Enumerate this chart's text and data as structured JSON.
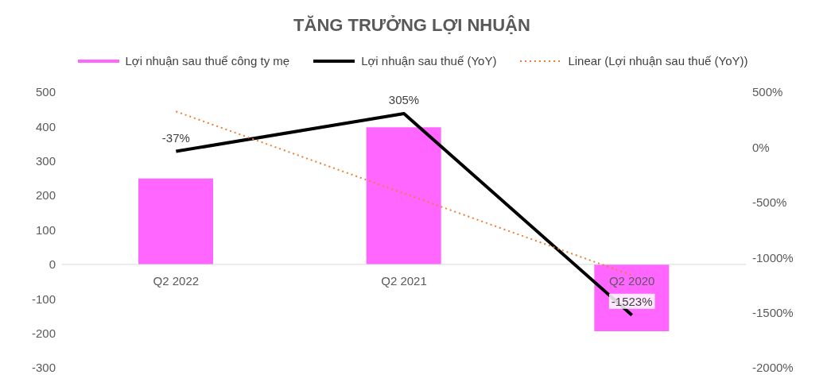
{
  "chart_data": {
    "type": "bar",
    "title": "TĂNG TRƯỞNG LỢI NHUẬN",
    "categories": [
      "Q2 2022",
      "Q2 2021",
      "Q2 2020"
    ],
    "series": [
      {
        "name": "Lợi nhuận sau thuế công ty mẹ",
        "color": "#ff66ff",
        "values": [
          249,
          398,
          -194
        ]
      },
      {
        "name": "Lợi nhuận sau thuế (YoY)",
        "type": "line",
        "axis": "y2",
        "color": "#000000",
        "values": [
          -37,
          305,
          -1523
        ],
        "value_labels": [
          "-37%",
          "305%",
          "-1523%"
        ]
      },
      {
        "name": "Linear (Lợi nhuận sau thuế (YoY))",
        "type": "line",
        "axis": "y2",
        "color": "#ed7d31",
        "line_style": "dotted",
        "values": [
          325,
          -418,
          -1161
        ]
      }
    ],
    "ylim": [
      -300,
      500
    ],
    "yticks": [
      -300,
      -200,
      -100,
      0,
      100,
      200,
      300,
      400,
      500
    ],
    "y2lim": [
      -2000,
      500
    ],
    "y2ticks": [
      {
        "value": -2000,
        "label": "-2000%"
      },
      {
        "value": -1500,
        "label": "-1500%"
      },
      {
        "value": -1000,
        "label": "-1000%"
      },
      {
        "value": -500,
        "label": "-500%"
      },
      {
        "value": 0,
        "label": "0%"
      },
      {
        "value": 500,
        "label": "500%"
      }
    ],
    "legend": "top",
    "grid": false,
    "marker": "none"
  }
}
